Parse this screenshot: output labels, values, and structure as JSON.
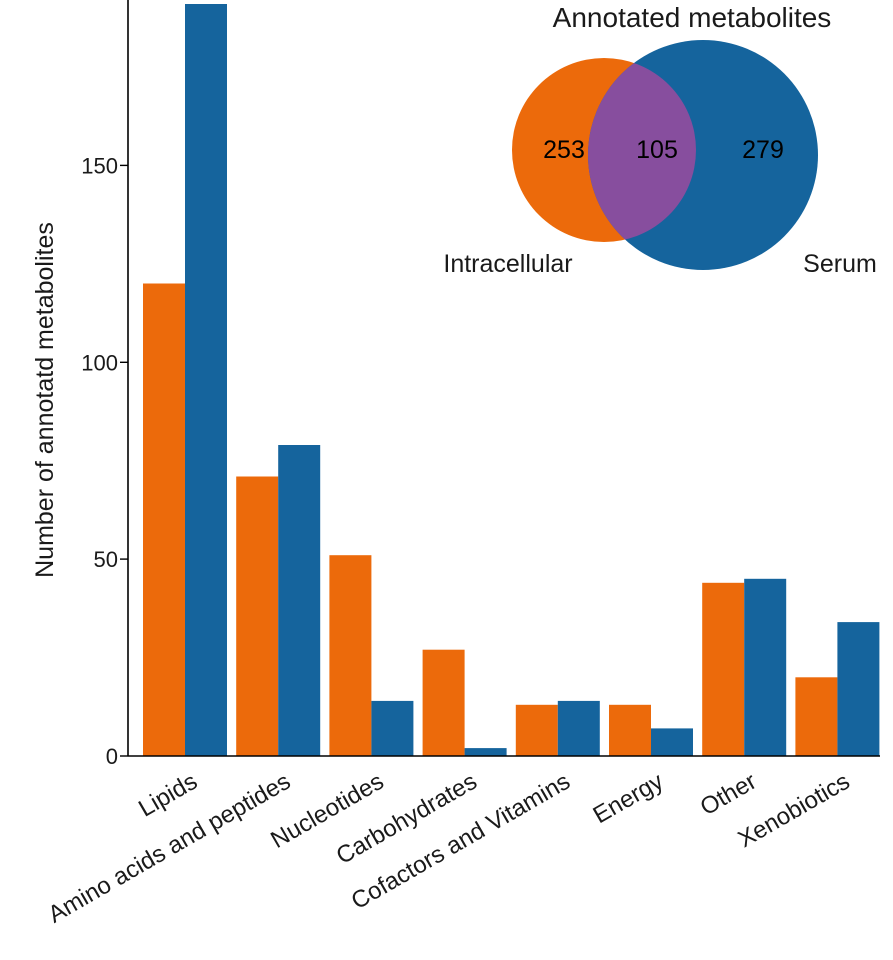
{
  "chart_data": {
    "type": "bar",
    "title": "",
    "xlabel": "",
    "ylabel": "Number of annotatd metabolites",
    "categories": [
      "Lipids",
      "Amino acids and peptides",
      "Nucleotides",
      "Carbohydrates",
      "Cofactors and Vitamins",
      "Energy",
      "Other",
      "Xenobiotics"
    ],
    "series": [
      {
        "name": "Intracellular",
        "color": "#EC6A0B",
        "values": [
          120,
          71,
          51,
          27,
          13,
          13,
          44,
          20
        ]
      },
      {
        "name": "Serum",
        "color": "#15649D",
        "values": [
          191,
          79,
          14,
          2,
          14,
          7,
          45,
          34
        ]
      }
    ],
    "ylim": [
      0,
      191
    ],
    "yticks": [
      0,
      50,
      100,
      150
    ],
    "grid": false,
    "legend": "none"
  },
  "venn": {
    "title": "Annotated metabolites",
    "left_label": "Intracellular",
    "right_label": "Serum",
    "left_only": "253",
    "overlap": "105",
    "right_only": "279",
    "left_color": "#EC6A0B",
    "right_color": "#15649D",
    "overlap_color": "#874E9E"
  }
}
